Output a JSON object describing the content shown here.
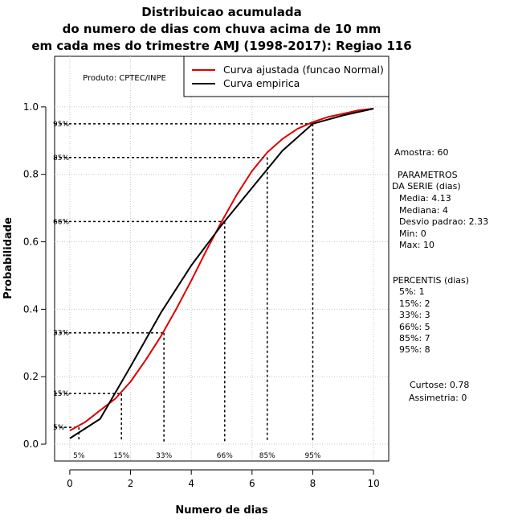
{
  "chart_data": {
    "type": "line",
    "title": [
      "Distribuicao acumulada",
      "do numero de dias com chuva acima de 10 mm",
      "em cada mes do trimestre AMJ (1998-2017): Regiao 116"
    ],
    "xlabel": "Numero de dias",
    "ylabel": "Probabilidade",
    "xlim": [
      -0.5,
      10.5
    ],
    "ylim": [
      -0.05,
      1.15
    ],
    "x_ticks": [
      "0",
      "2",
      "4",
      "6",
      "8",
      "10"
    ],
    "y_ticks": [
      "0.0",
      "0.2",
      "0.4",
      "0.6",
      "0.8",
      "1.0"
    ],
    "product_label": "Produto: CPTEC/INPE",
    "legend": [
      {
        "name": "Curva ajustada (funcao Normal)",
        "color": "#dd0000"
      },
      {
        "name": "Curva empirica",
        "color": "#000000"
      }
    ],
    "series": [
      {
        "name": "Curva ajustada (funcao Normal)",
        "color": "#dd0000",
        "x": [
          0,
          0.5,
          1,
          1.5,
          2,
          2.5,
          3,
          3.5,
          4,
          4.5,
          5,
          5.5,
          6,
          6.5,
          7,
          7.5,
          8,
          8.5,
          9,
          9.5,
          10
        ],
        "y": [
          0.04,
          0.065,
          0.1,
          0.135,
          0.185,
          0.25,
          0.32,
          0.4,
          0.485,
          0.575,
          0.66,
          0.74,
          0.81,
          0.865,
          0.905,
          0.935,
          0.955,
          0.97,
          0.98,
          0.99,
          0.995
        ]
      },
      {
        "name": "Curva empirica",
        "color": "#000000",
        "x": [
          0,
          1,
          2,
          3,
          4,
          5,
          6,
          7,
          8,
          9,
          10
        ],
        "y": [
          0.017,
          0.075,
          0.23,
          0.39,
          0.53,
          0.65,
          0.76,
          0.87,
          0.95,
          0.975,
          0.995
        ]
      }
    ],
    "percentile_markers": [
      {
        "label": "5%",
        "x": 0.3,
        "y": 0.05
      },
      {
        "label": "15%",
        "x": 1.7,
        "y": 0.15
      },
      {
        "label": "33%",
        "x": 3.1,
        "y": 0.33
      },
      {
        "label": "66%",
        "x": 5.1,
        "y": 0.66
      },
      {
        "label": "85%",
        "x": 6.5,
        "y": 0.85
      },
      {
        "label": "95%",
        "x": 8.0,
        "y": 0.95
      }
    ]
  },
  "stats": {
    "amostra": "Amostra: 60",
    "params_title_1": "PARAMETROS",
    "params_title_2": "DA SERIE (dias)",
    "media": "Media: 4.13",
    "mediana": "Mediana: 4",
    "desvio": "Desvio padrao: 2.33",
    "min": "Min: 0",
    "max": "Max: 10",
    "percentis_title": "PERCENTIS (dias)",
    "p5": "5%: 1",
    "p15": "15%: 2",
    "p33": "33%: 3",
    "p66": "66%: 5",
    "p85": "85%: 7",
    "p95": "95%: 8",
    "curtose": "Curtose: 0.78",
    "assimetria": "Assimetria: 0"
  }
}
